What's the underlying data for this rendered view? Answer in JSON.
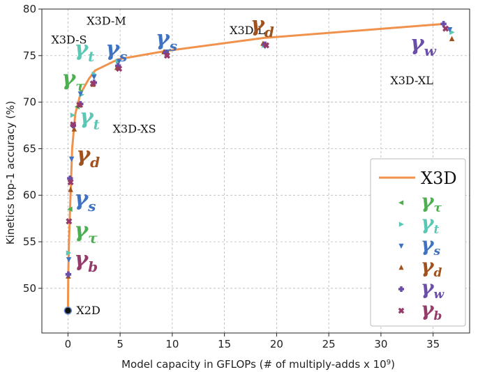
{
  "chart_data": {
    "type": "line",
    "xlabel": "Model capacity in GFLOPs (# of multiply-adds x 10",
    "xlabel_sup": "9",
    "xlabel_end": ")",
    "ylabel": "Kinetics top-1 accuracy (%)",
    "xlim": [
      -2.5,
      38.5
    ],
    "ylim": [
      45.2,
      80
    ],
    "xticks": [
      0,
      5,
      10,
      15,
      20,
      25,
      30,
      35
    ],
    "yticks": [
      50,
      55,
      60,
      65,
      70,
      75,
      80
    ],
    "grid": true,
    "legend_position": "bottom-right",
    "colors": {
      "x3d": "#f0924c",
      "tau": "#4caf50",
      "t": "#5bc8b6",
      "s": "#3f73c2",
      "d": "#a0521e",
      "w": "#6a4ea8",
      "b": "#963a6a"
    },
    "series": [
      {
        "name": "X3D",
        "key": "x3d",
        "marker": "line",
        "x": [
          0,
          0.03,
          0.1,
          0.2,
          0.4,
          0.7,
          1.2,
          2.0,
          2.6,
          4.8,
          9.4,
          18.8,
          36.0
        ],
        "y": [
          47.6,
          51.5,
          55,
          58.5,
          65,
          68.7,
          70.9,
          72.5,
          73.4,
          74.6,
          75.5,
          76.9,
          78.4
        ]
      },
      {
        "name": "γτ",
        "key": "tau",
        "marker": "triangle-left",
        "x": [
          0.2,
          0.9
        ],
        "y": [
          58.5,
          69.5
        ]
      },
      {
        "name": "γt",
        "key": "t",
        "marker": "triangle-right",
        "x": [
          0.05,
          0.45,
          1.3,
          2.5,
          4.8,
          9.4,
          18.8,
          36.8
        ],
        "y": [
          53.8,
          68.6,
          70.8,
          73.0,
          74.4,
          75.4,
          76.1,
          77.5
        ]
      },
      {
        "name": "γs",
        "key": "s",
        "marker": "triangle-down",
        "x": [
          0.08,
          0.35,
          1.2,
          2.5,
          4.9,
          9.5,
          18.9,
          36.6
        ],
        "y": [
          53.1,
          63.9,
          70.9,
          72.7,
          74.4,
          75.4,
          76.0,
          77.8
        ]
      },
      {
        "name": "γd",
        "key": "d",
        "marker": "triangle-up",
        "x": [
          0.03,
          0.25,
          0.6,
          1.2,
          2.4,
          4.7,
          9.2,
          18.7,
          36.8
        ],
        "y": [
          51.3,
          60.6,
          67.1,
          69.7,
          71.9,
          73.7,
          75.4,
          76.3,
          76.8
        ]
      },
      {
        "name": "γw",
        "key": "w",
        "marker": "plus",
        "x": [
          0.04,
          0.2,
          0.5,
          1.2,
          2.5,
          4.8,
          9.4,
          18.9,
          36.0
        ],
        "y": [
          51.5,
          61.8,
          67.5,
          69.8,
          72.1,
          73.9,
          75.3,
          76.2,
          78.4
        ]
      },
      {
        "name": "γb",
        "key": "b",
        "marker": "x",
        "x": [
          0.1,
          0.25,
          0.5,
          1.1,
          2.4,
          4.9,
          9.5,
          19.0,
          36.2
        ],
        "y": [
          57.2,
          61.4,
          67.6,
          69.7,
          72.0,
          73.6,
          75.0,
          76.1,
          77.9
        ]
      }
    ],
    "origin_point": {
      "label": "X2D",
      "x": 0,
      "y": 47.6
    },
    "model_labels": [
      {
        "text": "X3D-S",
        "x": -1.6,
        "y": 76.3
      },
      {
        "text": "X3D-M",
        "x": 1.8,
        "y": 78.3
      },
      {
        "text": "X3D-L",
        "x": 15.5,
        "y": 77.3
      },
      {
        "text": "X3D-XS",
        "x": 4.3,
        "y": 66.7
      },
      {
        "text": "X3D-XL",
        "x": 30.9,
        "y": 71.9
      }
    ],
    "greek_annotations": [
      {
        "greek": "γ",
        "sub": "τ",
        "key": "tau",
        "x": -0.6,
        "y": 71.8
      },
      {
        "greek": "γ",
        "sub": "t",
        "key": "t",
        "x": 0.6,
        "y": 75.0
      },
      {
        "greek": "γ",
        "sub": "t",
        "key": "t",
        "x": 1.1,
        "y": 67.7
      },
      {
        "greek": "γ",
        "sub": "d",
        "key": "d",
        "x": 0.8,
        "y": 63.6
      },
      {
        "greek": "γ",
        "sub": "s",
        "key": "s",
        "x": 0.6,
        "y": 58.9
      },
      {
        "greek": "γ",
        "sub": "τ",
        "key": "tau",
        "x": 0.6,
        "y": 55.5
      },
      {
        "greek": "γ",
        "sub": "b",
        "key": "b",
        "x": 0.6,
        "y": 52.4
      },
      {
        "greek": "γ",
        "sub": "s",
        "key": "s",
        "x": 3.6,
        "y": 75.0
      },
      {
        "greek": "γ",
        "sub": "s",
        "key": "s",
        "x": 8.4,
        "y": 76.1
      },
      {
        "greek": "γ",
        "sub": "d",
        "key": "d",
        "x": 17.5,
        "y": 77.6
      },
      {
        "greek": "γ",
        "sub": "w",
        "key": "w",
        "x": 32.8,
        "y": 75.6
      }
    ],
    "legend": [
      {
        "label_main": "X3D",
        "key": "x3d",
        "marker": "line"
      },
      {
        "label_main": "γ",
        "label_sub": "τ",
        "key": "tau",
        "marker": "triangle-left"
      },
      {
        "label_main": "γ",
        "label_sub": "t",
        "key": "t",
        "marker": "triangle-right"
      },
      {
        "label_main": "γ",
        "label_sub": "s",
        "key": "s",
        "marker": "triangle-down"
      },
      {
        "label_main": "γ",
        "label_sub": "d",
        "key": "d",
        "marker": "triangle-up"
      },
      {
        "label_main": "γ",
        "label_sub": "w",
        "key": "w",
        "marker": "plus"
      },
      {
        "label_main": "γ",
        "label_sub": "b",
        "key": "b",
        "marker": "x"
      }
    ]
  }
}
